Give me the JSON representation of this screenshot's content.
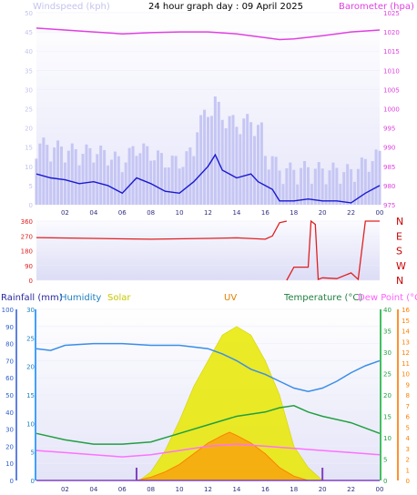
{
  "title": "24 hour graph day : 09 April 2025",
  "colors": {
    "wind_label": "#c4c4ee",
    "wind_gust": "#c6c6f4",
    "wind_avg": "#1a1ad0",
    "baro": "#e040e0",
    "wdir": "#e02020",
    "rain": "#3060d0",
    "humidity": "#3a8ee8",
    "solar": "#e8e800",
    "uv": "#ff8000",
    "temp": "#20a040",
    "dew": "#ff70ff",
    "dir_label": "#cc0000",
    "rain_hdr": "#2a2aa0",
    "humid_hdr": "#2080c0",
    "solar_hdr": "#c8c800",
    "uv_hdr": "#e08000",
    "temp_hdr": "#208040",
    "dew_hdr": "#ff60ff"
  },
  "panels": {
    "wind": {
      "left_label": "Windspeed (kph)",
      "right_label": "Barometer (hpa)",
      "left_ticks": [
        "0",
        "5",
        "10",
        "15",
        "20",
        "25",
        "30",
        "35",
        "40",
        "45",
        "50"
      ],
      "right_ticks": [
        "975",
        "980",
        "985",
        "990",
        "995",
        "1000",
        "1005",
        "1010",
        "1015",
        "1020",
        "1025"
      ]
    },
    "direction": {
      "left_ticks": [
        "0",
        "90",
        "180",
        "270",
        "360"
      ],
      "right_labels": [
        "N",
        "W",
        "S",
        "E",
        "N"
      ]
    },
    "weather": {
      "labels": {
        "rain": "Rainfall (mm)",
        "humidity": "Humidity",
        "solar": "Solar",
        "uv": "UV",
        "temp": "Temperature (°C)",
        "dew": "Dew Point (°C)"
      },
      "left_ticks": [
        "0",
        "10",
        "20",
        "30",
        "40",
        "50",
        "60",
        "70",
        "80",
        "90",
        "100"
      ],
      "rain_ticks": [
        "0",
        "5",
        "10",
        "15",
        "20",
        "25",
        "30"
      ],
      "temp_ticks": [
        "0",
        "5",
        "10",
        "15",
        "20",
        "25",
        "30",
        "35",
        "40"
      ],
      "uv_ticks": [
        "0",
        "1",
        "2",
        "3",
        "4",
        "5",
        "6",
        "7",
        "8",
        "9",
        "10",
        "11",
        "12",
        "13",
        "14",
        "15",
        "16"
      ]
    },
    "x_ticks": [
      "02",
      "04",
      "06",
      "08",
      "10",
      "12",
      "14",
      "16",
      "18",
      "20",
      "22",
      "00"
    ]
  },
  "chart_data": {
    "type": "line",
    "x_unit": "hour",
    "x_range": [
      0,
      24
    ],
    "series": [
      {
        "name": "Windspeed (kph)",
        "points": [
          [
            0,
            8
          ],
          [
            1,
            7
          ],
          [
            2,
            6.5
          ],
          [
            3,
            5.5
          ],
          [
            4,
            6
          ],
          [
            5,
            5
          ],
          [
            6,
            3
          ],
          [
            7,
            7
          ],
          [
            8,
            5.5
          ],
          [
            9,
            3.5
          ],
          [
            10,
            3
          ],
          [
            11,
            6
          ],
          [
            12,
            10
          ],
          [
            12.5,
            13
          ],
          [
            13,
            9
          ],
          [
            14,
            7
          ],
          [
            15,
            8
          ],
          [
            15.5,
            6
          ],
          [
            16,
            5
          ],
          [
            16.5,
            4
          ],
          [
            17,
            1
          ],
          [
            18,
            1
          ],
          [
            19,
            1.5
          ],
          [
            20,
            1
          ],
          [
            21,
            1
          ],
          [
            22,
            0.5
          ],
          [
            23,
            3
          ],
          [
            24,
            5
          ]
        ]
      },
      {
        "name": "Barometer (hpa)",
        "points": [
          [
            0,
            1021
          ],
          [
            2,
            1020.5
          ],
          [
            4,
            1020
          ],
          [
            6,
            1019.5
          ],
          [
            8,
            1019.8
          ],
          [
            10,
            1020
          ],
          [
            12,
            1020
          ],
          [
            14,
            1019.5
          ],
          [
            16,
            1018.5
          ],
          [
            17,
            1018
          ],
          [
            18,
            1018.2
          ],
          [
            20,
            1019
          ],
          [
            22,
            1020
          ],
          [
            24,
            1020.5
          ]
        ]
      },
      {
        "name": "Wind direction",
        "points": [
          [
            0,
            260
          ],
          [
            4,
            255
          ],
          [
            8,
            250
          ],
          [
            12,
            255
          ],
          [
            14,
            258
          ],
          [
            16,
            250
          ],
          [
            16.5,
            270
          ],
          [
            17,
            350
          ],
          [
            17.5,
            360
          ],
          [
            17.5,
            0
          ],
          [
            18,
            80
          ],
          [
            19,
            80
          ],
          [
            19.2,
            360
          ],
          [
            19.5,
            340
          ],
          [
            19.7,
            5
          ],
          [
            20,
            15
          ],
          [
            21,
            10
          ],
          [
            22,
            45
          ],
          [
            22.5,
            5
          ],
          [
            23,
            360
          ],
          [
            24,
            360
          ]
        ]
      },
      {
        "name": "Humidity",
        "points": [
          [
            0,
            77
          ],
          [
            1,
            76
          ],
          [
            2,
            79
          ],
          [
            4,
            80
          ],
          [
            6,
            80
          ],
          [
            8,
            79
          ],
          [
            10,
            79
          ],
          [
            12,
            77
          ],
          [
            13,
            74
          ],
          [
            14,
            70
          ],
          [
            15,
            65
          ],
          [
            16,
            62
          ],
          [
            17,
            58
          ],
          [
            18,
            54
          ],
          [
            19,
            52
          ],
          [
            20,
            54
          ],
          [
            21,
            58
          ],
          [
            22,
            63
          ],
          [
            23,
            67
          ],
          [
            24,
            70
          ]
        ]
      },
      {
        "name": "Temperature (°C)",
        "points": [
          [
            0,
            11
          ],
          [
            2,
            9.5
          ],
          [
            4,
            8.5
          ],
          [
            6,
            8.5
          ],
          [
            8,
            9
          ],
          [
            10,
            11
          ],
          [
            12,
            13
          ],
          [
            14,
            15
          ],
          [
            16,
            16
          ],
          [
            17,
            17
          ],
          [
            18,
            17.5
          ],
          [
            19,
            16
          ],
          [
            20,
            15
          ],
          [
            22,
            13.5
          ],
          [
            24,
            11
          ]
        ]
      },
      {
        "name": "Dew Point (°C)",
        "points": [
          [
            0,
            7
          ],
          [
            2,
            6.5
          ],
          [
            4,
            6
          ],
          [
            6,
            5.5
          ],
          [
            8,
            6
          ],
          [
            10,
            7
          ],
          [
            12,
            8
          ],
          [
            14,
            8.5
          ],
          [
            16,
            8
          ],
          [
            18,
            7.5
          ],
          [
            20,
            7
          ],
          [
            22,
            6.5
          ],
          [
            24,
            6
          ]
        ]
      },
      {
        "name": "UV",
        "points": [
          [
            0,
            0
          ],
          [
            7,
            0
          ],
          [
            8,
            0.3
          ],
          [
            9,
            0.8
          ],
          [
            10,
            1.5
          ],
          [
            11,
            2.5
          ],
          [
            12,
            3.5
          ],
          [
            13,
            4.2
          ],
          [
            13.5,
            4.5
          ],
          [
            14,
            4.2
          ],
          [
            15,
            3.5
          ],
          [
            16,
            2.5
          ],
          [
            17,
            1.2
          ],
          [
            18,
            0.4
          ],
          [
            19,
            0
          ],
          [
            24,
            0
          ]
        ]
      },
      {
        "name": "Solar",
        "points": [
          [
            0,
            0
          ],
          [
            7.2,
            0
          ],
          [
            8,
            2
          ],
          [
            9,
            7
          ],
          [
            10,
            14
          ],
          [
            11,
            22
          ],
          [
            12,
            28
          ],
          [
            13,
            34
          ],
          [
            14,
            36
          ],
          [
            15,
            34
          ],
          [
            16,
            28
          ],
          [
            17,
            20
          ],
          [
            18,
            8
          ],
          [
            19,
            3
          ],
          [
            20,
            0
          ],
          [
            24,
            0
          ]
        ]
      },
      {
        "name": "Rainfall (mm)",
        "points": [
          [
            7,
            1.5
          ],
          [
            20,
            1.5
          ]
        ]
      }
    ]
  }
}
